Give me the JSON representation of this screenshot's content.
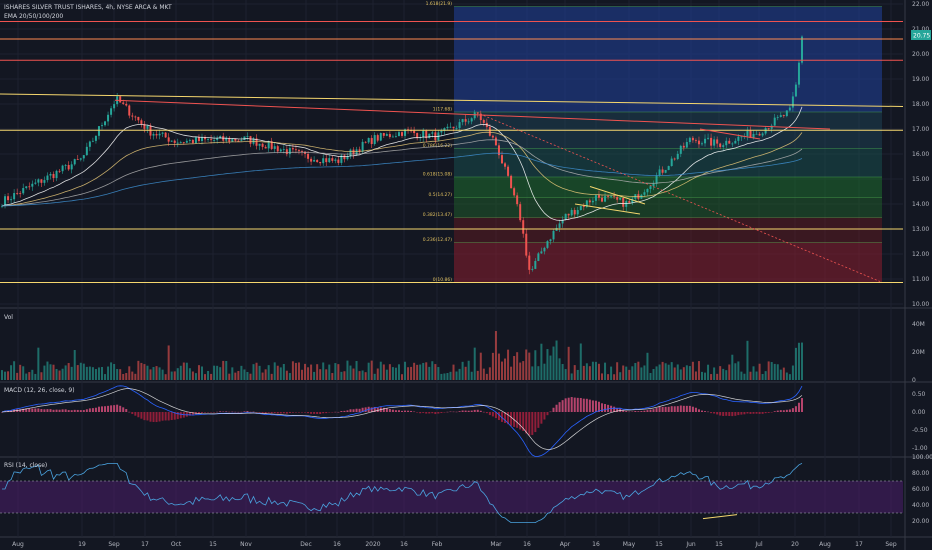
{
  "header": {
    "symbol_title": "ISHARES SILVER TRUST ISHARES, 4h, NYSE ARCA & MKT",
    "ema_label": "EMA 20/50/100/200"
  },
  "panes": {
    "volume_label": "Vol",
    "macd_label": "MACD (12, 26, close, 9)",
    "rsi_label": "RSI (14, close)"
  },
  "last_price": "20.75",
  "colors": {
    "background": "#131722",
    "up": "#26a69a",
    "down": "#ef5350",
    "grid": "#1e2230",
    "ema20": "#ffffff",
    "ema50": "#e8c878",
    "ema100": "#b0b0b0",
    "ema200": "#3e8fd0",
    "fib_blue": "#1e3a8a",
    "fib_green": "#1b5e20",
    "fib_red": "#7f1d1d",
    "rsi_band": "#4a1d6a",
    "hline_orange": "#ff8a50",
    "hline_yellow": "#f5d76e",
    "hline_red": "#ef5350"
  },
  "chart_data": [
    {
      "type": "candlestick",
      "name": "price",
      "x_ticks": [
        "Aug",
        "19",
        "Sep",
        "17",
        "Oct",
        "15",
        "Nov",
        "Dec",
        "16",
        "2020",
        "16",
        "Feb",
        "Mar",
        "16",
        "Apr",
        "16",
        "May",
        "15",
        "Jun",
        "15",
        "Jul",
        "20",
        "Aug",
        "17",
        "Sep"
      ],
      "y_ticks": [
        22,
        21,
        20,
        19,
        18,
        17,
        16,
        15,
        14,
        13,
        12,
        11,
        10
      ],
      "ylim": [
        10,
        22
      ],
      "fib_levels": [
        {
          "label": "0(10.86)",
          "value": 10.86
        },
        {
          "label": "0.236(12.47)",
          "value": 12.47
        },
        {
          "label": "0.382(13.47)",
          "value": 13.47
        },
        {
          "label": "0.5(14.27)",
          "value": 14.27
        },
        {
          "label": "0.618(15.08)",
          "value": 15.08
        },
        {
          "label": "0.786(16.22)",
          "value": 16.22
        },
        {
          "label": "1(17.68)",
          "value": 17.68
        },
        {
          "label": "1.618(21.9)",
          "value": 21.9
        }
      ],
      "horizontal_lines": [
        {
          "value": 21.3,
          "color": "hline_red"
        },
        {
          "value": 20.6,
          "color": "hline_orange"
        },
        {
          "value": 19.75,
          "color": "hline_red"
        },
        {
          "value": 16.95,
          "color": "hline_yellow"
        },
        {
          "value": 13.0,
          "color": "hline_yellow"
        },
        {
          "value": 10.86,
          "color": "hline_yellow"
        }
      ],
      "key_points": [
        {
          "x": "Jul 2019 start",
          "close": 14.1
        },
        {
          "x": "Aug 19",
          "close": 15.8
        },
        {
          "x": "Sep 4",
          "close": 18.2
        },
        {
          "x": "Sep 17",
          "close": 16.9
        },
        {
          "x": "Oct 15",
          "close": 16.5
        },
        {
          "x": "Nov 1",
          "close": 16.6
        },
        {
          "x": "Dec 1",
          "close": 15.9
        },
        {
          "x": "Dec 16",
          "close": 15.7
        },
        {
          "x": "2020 Jan 1",
          "close": 16.6
        },
        {
          "x": "Jan 16",
          "close": 16.9
        },
        {
          "x": "Feb 1",
          "close": 16.7
        },
        {
          "x": "Feb 24",
          "close": 17.6
        },
        {
          "x": "Mar 9",
          "close": 16.3
        },
        {
          "x": "Mar 16",
          "close": 13.5
        },
        {
          "x": "Mar 18",
          "close": 11.2
        },
        {
          "x": "Mar 24",
          "close": 12.4
        },
        {
          "x": "Apr 1",
          "close": 13.5
        },
        {
          "x": "Apr 16",
          "close": 14.3
        },
        {
          "x": "May 1",
          "close": 14.0
        },
        {
          "x": "May 15",
          "close": 15.2
        },
        {
          "x": "Jun 1",
          "close": 16.6
        },
        {
          "x": "Jun 15",
          "close": 16.4
        },
        {
          "x": "Jul 1",
          "close": 16.9
        },
        {
          "x": "Jul 15",
          "close": 17.7
        },
        {
          "x": "Jul 21",
          "close": 18.9
        },
        {
          "x": "Jul 22",
          "close": 20.75
        }
      ]
    },
    {
      "type": "bar",
      "name": "volume",
      "y_ticks": [
        "40M",
        "20M",
        "0"
      ],
      "ylim": [
        0,
        50
      ]
    },
    {
      "type": "line",
      "name": "macd",
      "y_ticks": [
        "0.50",
        "0.00",
        "-0.50",
        "-1.00"
      ],
      "ylim": [
        -1.2,
        0.75
      ]
    },
    {
      "type": "line",
      "name": "rsi",
      "y_ticks": [
        "100.00",
        "80.00",
        "60.00",
        "40.00",
        "20.00"
      ],
      "ylim": [
        10,
        100
      ],
      "bands": [
        30,
        70
      ]
    }
  ]
}
